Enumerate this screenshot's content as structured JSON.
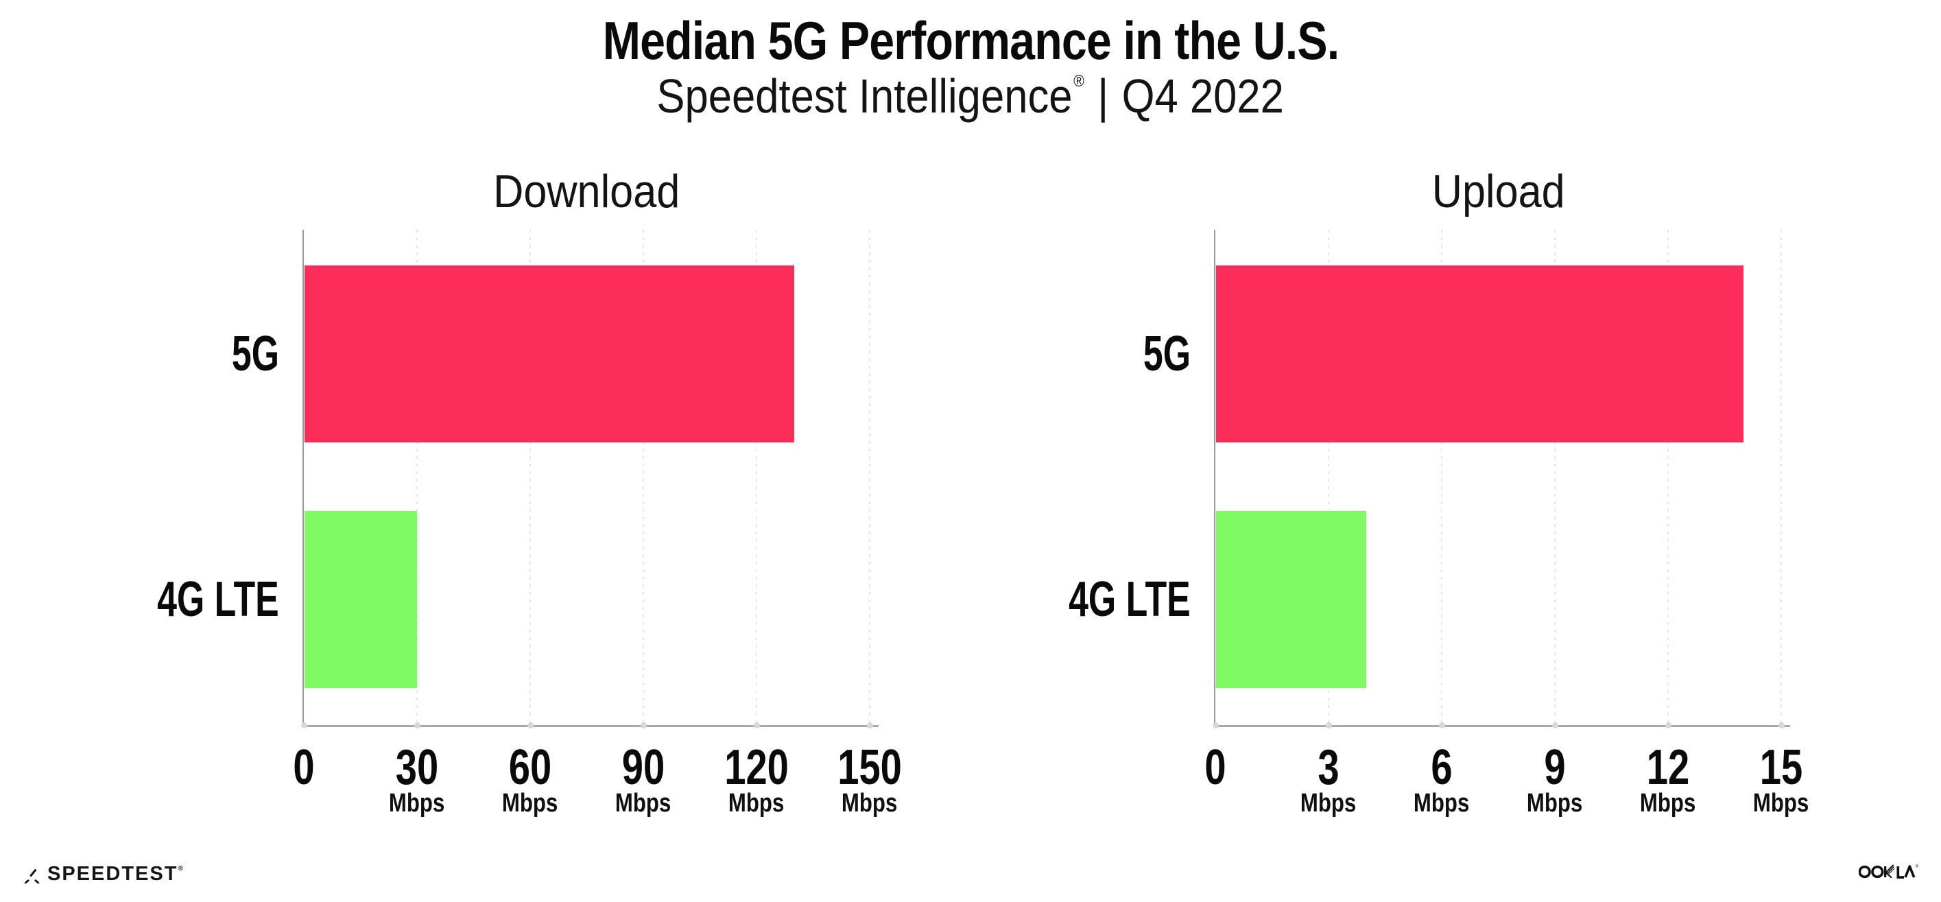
{
  "header": {
    "title": "Median 5G Performance in the U.S.",
    "subtitle_product": "Speedtest Intelligence",
    "subtitle_reg": "®",
    "subtitle_sep": "|",
    "subtitle_period": "Q4 2022"
  },
  "colors": {
    "bar_5g": "#fc2e59",
    "bar_4g_lte": "#80fa62",
    "grid": "#e4e4ee",
    "axis": "#a7a7af"
  },
  "chart_data": [
    {
      "type": "bar",
      "orientation": "horizontal",
      "title": "Download",
      "categories": [
        "5G",
        "4G LTE"
      ],
      "values": [
        130,
        30
      ],
      "unit": "Mbps",
      "xlim": [
        0,
        150
      ],
      "xticks": [
        0,
        30,
        60,
        90,
        120,
        150
      ],
      "grid": "vertical-dotted",
      "legend": "none",
      "bar_colors": [
        "#fc2e59",
        "#80fa62"
      ]
    },
    {
      "type": "bar",
      "orientation": "horizontal",
      "title": "Upload",
      "categories": [
        "5G",
        "4G LTE"
      ],
      "values": [
        14,
        4
      ],
      "unit": "Mbps",
      "xlim": [
        0,
        15
      ],
      "xticks": [
        0,
        3,
        6,
        9,
        12,
        15
      ],
      "grid": "vertical-dotted",
      "legend": "none",
      "bar_colors": [
        "#fc2e59",
        "#80fa62"
      ]
    }
  ],
  "footer": {
    "speedtest_label": "SPEEDTEST",
    "speedtest_reg": "®",
    "speedtest_icon": "speedtest-gauge-icon",
    "ookla_label": "OOKLA",
    "ookla_reg": "®"
  }
}
